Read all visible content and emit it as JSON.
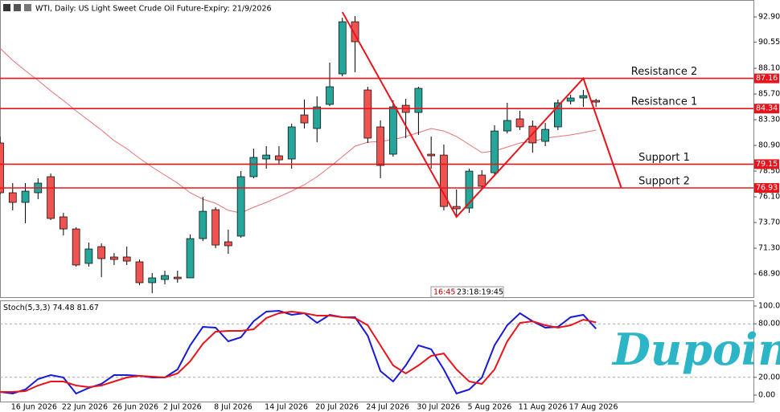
{
  "chart_data": [
    {
      "type": "candlestick",
      "title": "WTI, Daily:  US Light Sweet Crude Oil Future-Expiry: 21/9/2026",
      "timer": [
        "16:45",
        "23:18:19:45"
      ],
      "logo": "Dupoin",
      "categories": [
        null,
        "16 Jun 2026",
        null,
        null,
        null,
        "22 Jun 2026",
        null,
        null,
        null,
        "26 Jun 2026",
        null,
        null,
        null,
        "2 Jul 2026",
        null,
        null,
        null,
        "8 Jul 2026",
        null,
        null,
        null,
        "14 Jul 2026",
        null,
        null,
        null,
        "20 Jul 2026",
        null,
        null,
        null,
        "24 Jul 2026",
        null,
        null,
        null,
        "30 Jul 2026",
        null,
        null,
        null,
        "5 Aug 2026",
        null,
        null,
        null,
        "11 Aug 2026",
        null,
        null,
        null,
        "17 Aug 2026",
        null,
        null
      ],
      "open": [
        81.13,
        76.48,
        75.58,
        76.48,
        77.98,
        74.23,
        73.1,
        69.88,
        71.45,
        70.48,
        70.48,
        70.03,
        68.08,
        68.38,
        68.6,
        68.53,
        72.2,
        74.9,
        71.9,
        72.43,
        77.98,
        79.63,
        79.93,
        79.63,
        83.75,
        82.48,
        84.73,
        87.58,
        92.45,
        86.08,
        82.63,
        80.08,
        84.65,
        83.98,
        80.08,
        80.0,
        75.2,
        75.05,
        78.13,
        78.35,
        82.25,
        83.38,
        82.7,
        81.28,
        82.63,
        85.03,
        85.33,
        85.1
      ],
      "high": [
        81.73,
        77.38,
        77.38,
        77.83,
        78.28,
        74.6,
        73.25,
        71.83,
        71.75,
        70.85,
        71.45,
        70.25,
        68.98,
        69.2,
        69.2,
        72.58,
        76.1,
        75.13,
        73.03,
        78.5,
        80.6,
        80.83,
        80.83,
        82.93,
        85.18,
        85.48,
        88.63,
        92.83,
        92.98,
        86.38,
        83.23,
        85.1,
        85.25,
        86.38,
        81.73,
        80.98,
        76.78,
        78.73,
        78.58,
        82.78,
        84.88,
        84.13,
        83.23,
        83.0,
        85.18,
        85.63,
        86.08,
        85.25
      ],
      "low": [
        76.33,
        74.83,
        73.63,
        75.88,
        73.93,
        72.5,
        69.58,
        69.58,
        68.6,
        69.73,
        69.73,
        67.85,
        67.1,
        67.93,
        68.08,
        68.53,
        71.98,
        71.3,
        70.78,
        72.28,
        77.83,
        78.73,
        79.1,
        78.73,
        82.48,
        81.2,
        84.58,
        87.35,
        87.73,
        81.13,
        77.83,
        79.85,
        81.58,
        81.88,
        78.73,
        74.83,
        74.23,
        74.6,
        76.85,
        78.13,
        82.03,
        82.33,
        80.23,
        80.83,
        82.33,
        84.73,
        84.5,
        84.5
      ],
      "close": [
        76.48,
        75.58,
        76.63,
        77.38,
        74.08,
        73.1,
        69.73,
        71.23,
        70.33,
        70.25,
        70.1,
        68.08,
        68.53,
        68.75,
        68.45,
        72.2,
        74.75,
        71.6,
        71.53,
        77.98,
        79.78,
        80.0,
        79.55,
        82.63,
        83.0,
        84.5,
        86.38,
        92.45,
        90.58,
        81.58,
        79.03,
        84.5,
        83.98,
        86.23,
        79.93,
        75.2,
        74.98,
        78.5,
        77.08,
        82.25,
        83.23,
        82.63,
        81.13,
        82.4,
        84.88,
        85.33,
        85.55,
        84.95
      ],
      "up_color": "#26a69a",
      "down_color": "#ef5350",
      "ma": {
        "color": "#e57373",
        "values": [
          89.98,
          88.85,
          87.88,
          86.98,
          86.0,
          85.1,
          84.13,
          83.23,
          82.33,
          81.35,
          80.6,
          79.7,
          78.88,
          78.13,
          77.38,
          76.48,
          75.88,
          75.5,
          74.83,
          74.6,
          75.13,
          75.58,
          76.1,
          76.63,
          77.23,
          77.98,
          78.88,
          79.85,
          80.83,
          81.2,
          81.28,
          81.43,
          81.73,
          82.1,
          82.48,
          82.25,
          81.73,
          80.98,
          80.23,
          80.38,
          80.75,
          81.13,
          81.28,
          81.58,
          81.73,
          81.88,
          82.1,
          82.33
        ]
      },
      "zigzag": {
        "color": "#e8141b",
        "x": [
          27,
          36,
          46,
          49
        ],
        "values": [
          93.35,
          74.23,
          87.16,
          76.93
        ]
      },
      "levels": [
        {
          "name": "Resistance 2",
          "value": 87.16,
          "color": "#e8141b"
        },
        {
          "name": "Resistance 1",
          "value": 84.34,
          "color": "#e8141b"
        },
        {
          "name": "Support 1",
          "value": 79.15,
          "color": "#e8141b"
        },
        {
          "name": "Support 2",
          "value": 76.93,
          "color": "#e8141b"
        }
      ],
      "ylim": [
        66.73,
        93.88
      ],
      "yticks": [
        {
          "value": 92.9,
          "label": "92.90"
        },
        {
          "value": 90.55,
          "label": "90.55"
        },
        {
          "value": 88.1,
          "label": "88.10"
        },
        {
          "value": 85.7,
          "label": "85.70"
        },
        {
          "value": 83.3,
          "label": "83.30"
        },
        {
          "value": 80.9,
          "label": "80.90"
        },
        {
          "value": 78.5,
          "label": "78.50"
        },
        {
          "value": 76.1,
          "label": "76.10"
        },
        {
          "value": 73.7,
          "label": "73.70"
        },
        {
          "value": 71.3,
          "label": "71.30"
        },
        {
          "value": 68.9,
          "label": "68.90"
        }
      ]
    },
    {
      "type": "line",
      "title": "Stoch(5,3,3)",
      "series": [
        {
          "color": "#1a1ad6",
          "values": [
            3.6,
            1.8,
            6.3,
            18.0,
            22.5,
            19.8,
            1.8,
            8.1,
            12.6,
            22.5,
            22.5,
            21.6,
            19.8,
            19.8,
            28.8,
            55.9,
            76.6,
            75.7,
            60.4,
            64.9,
            82.9,
            93.7,
            94.6,
            90.1,
            91.9,
            81.1,
            90.1,
            87.4,
            87.4,
            66.7,
            27.0,
            15.3,
            33.3,
            55.9,
            51.4,
            28.8,
            1.8,
            6.3,
            19.8,
            55.9,
            78.4,
            91.9,
            82.9,
            75.7,
            76.6,
            87.4,
            90.1,
            74.48
          ]
        },
        {
          "color": "#e8141b",
          "values": [
            3.6,
            3.6,
            4.5,
            10.8,
            15.3,
            15.3,
            10.8,
            9.0,
            10.8,
            15.3,
            19.8,
            21.6,
            20.7,
            19.8,
            24.3,
            37.8,
            57.7,
            71.2,
            72.1,
            72.1,
            73.9,
            86.5,
            91.9,
            93.7,
            91.9,
            89.2,
            89.2,
            87.4,
            86.5,
            78.4,
            55.9,
            33.3,
            24.3,
            33.3,
            44.1,
            46.8,
            28.8,
            15.3,
            12.6,
            28.8,
            60.4,
            81.1,
            82.9,
            78.4,
            75.7,
            78.4,
            84.7,
            81.67
          ]
        }
      ],
      "levels": [
        80,
        20
      ],
      "ylim": [
        -7.2,
        105.4
      ],
      "yticks": [
        {
          "value": 100,
          "label": "100.00"
        },
        {
          "value": 80,
          "label": "80.00"
        },
        {
          "value": 20,
          "label": "20.00"
        },
        {
          "value": 0,
          "label": "0.00"
        }
      ]
    }
  ]
}
